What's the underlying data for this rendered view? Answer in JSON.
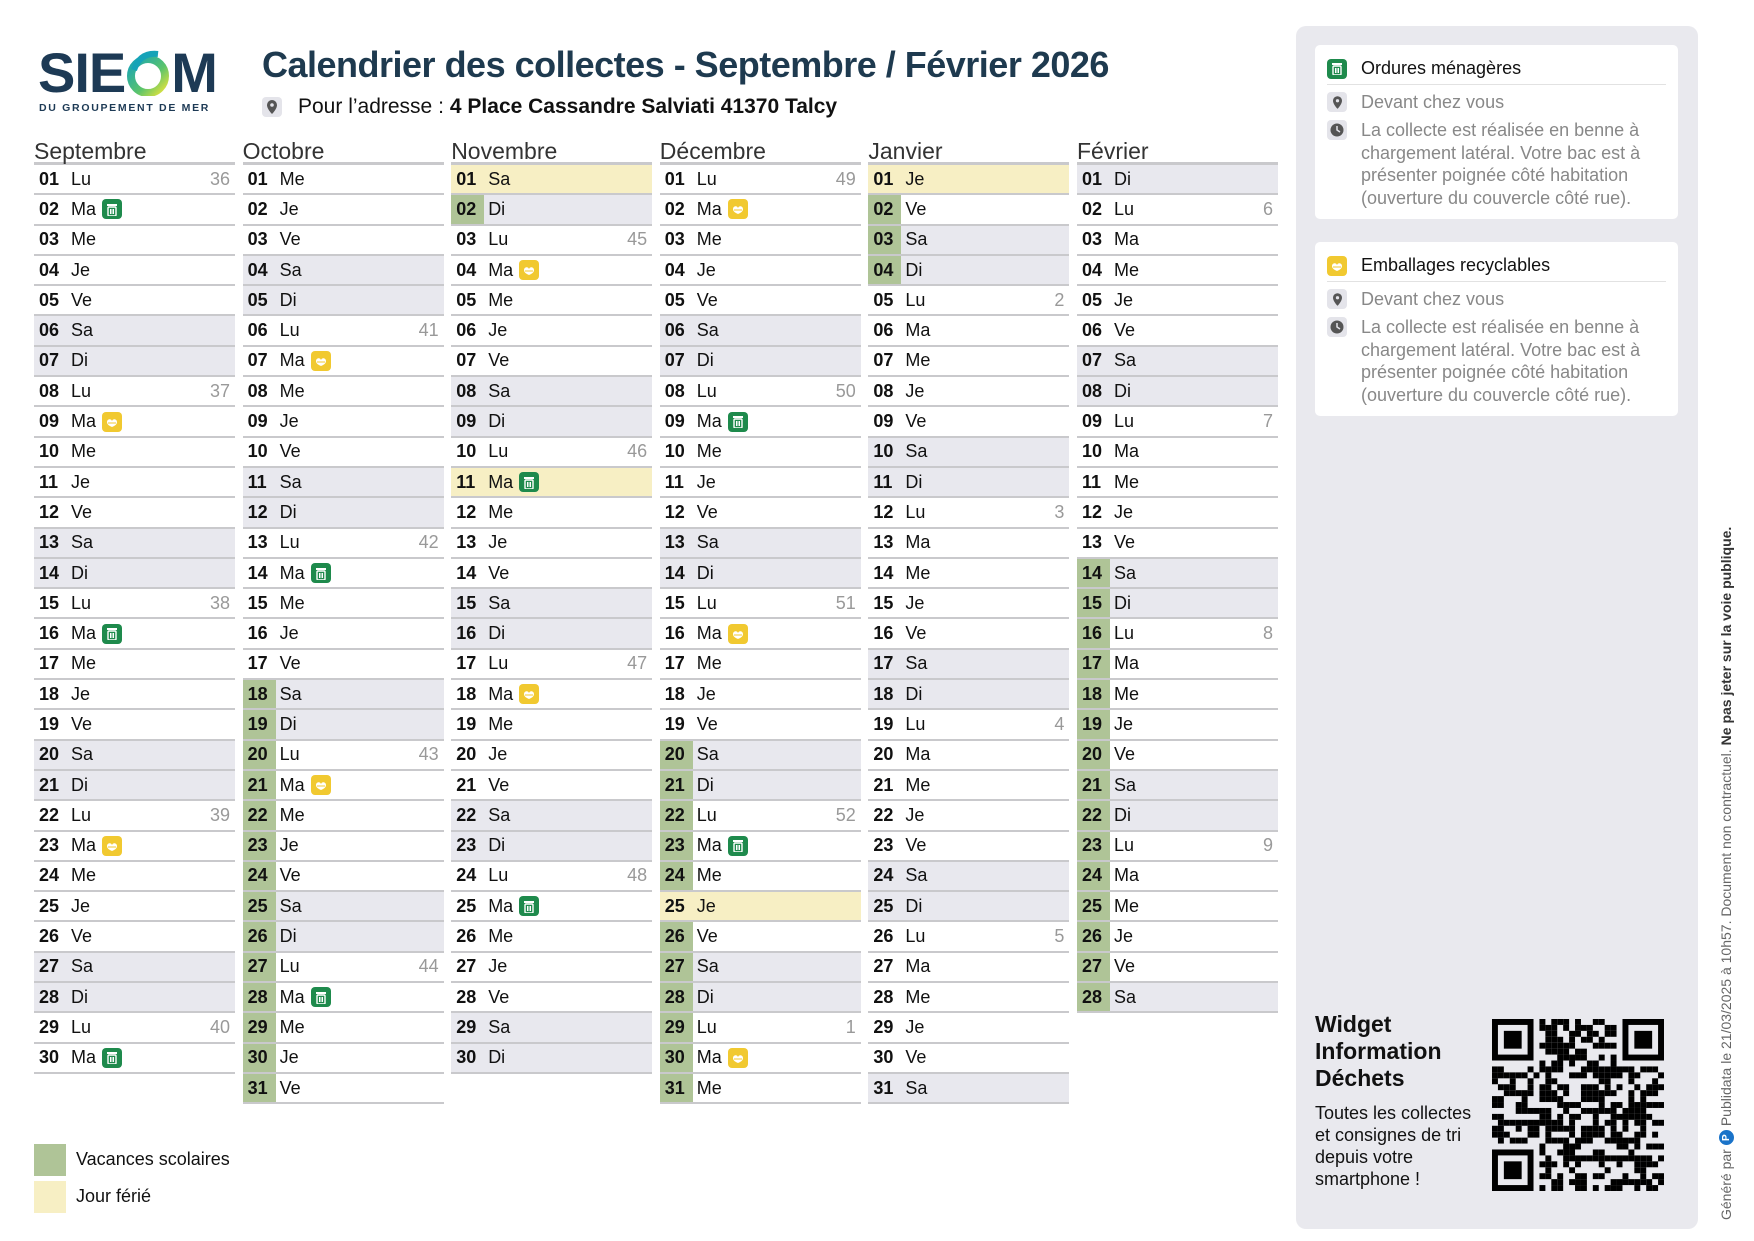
{
  "logo": {
    "text": "SIEOM",
    "subtitle": "DU GROUPEMENT DE MER"
  },
  "header": {
    "title": "Calendrier des collectes - Septembre / Février 2026",
    "address_label": "Pour l’adresse :",
    "address": "4 Place Cassandre Salviati 41370 Talcy"
  },
  "weekdays": [
    "Lu",
    "Ma",
    "Me",
    "Je",
    "Ve",
    "Sa",
    "Di"
  ],
  "colors": {
    "vacation": "#afc497",
    "holiday": "#f7efc4",
    "weekend": "#e8e8ee",
    "trash": "#1e8a4c",
    "recycling": "#f1c930",
    "title": "#1e3a4f"
  },
  "months": [
    {
      "name": "Septembre",
      "days": 30,
      "first_weekday": "Lu",
      "weeks": {
        "1": "36",
        "8": "37",
        "15": "38",
        "22": "39",
        "29": "40"
      },
      "trash": [
        2,
        16,
        30
      ],
      "recycling": [
        9,
        23
      ],
      "holidays": [],
      "vacation": []
    },
    {
      "name": "Octobre",
      "days": 31,
      "first_weekday": "Me",
      "weeks": {
        "6": "41",
        "13": "42",
        "20": "43",
        "27": "44"
      },
      "trash": [
        14,
        28
      ],
      "recycling": [
        7,
        21
      ],
      "holidays": [],
      "vacation": [
        [
          18,
          31
        ]
      ]
    },
    {
      "name": "Novembre",
      "days": 30,
      "first_weekday": "Sa",
      "weeks": {
        "3": "45",
        "10": "46",
        "17": "47",
        "24": "48"
      },
      "trash": [
        11,
        25
      ],
      "recycling": [
        4,
        18
      ],
      "holidays": [
        1,
        11
      ],
      "vacation": [
        [
          1,
          2
        ]
      ]
    },
    {
      "name": "Décembre",
      "days": 31,
      "first_weekday": "Lu",
      "weeks": {
        "1": "49",
        "8": "50",
        "15": "51",
        "22": "52",
        "29": "1"
      },
      "trash": [
        9,
        23
      ],
      "recycling": [
        2,
        16,
        30
      ],
      "holidays": [
        25
      ],
      "vacation": [
        [
          20,
          31
        ]
      ]
    },
    {
      "name": "Janvier",
      "days": 31,
      "first_weekday": "Je",
      "weeks": {
        "5": "2",
        "12": "3",
        "19": "4",
        "26": "5"
      },
      "trash": [],
      "recycling": [],
      "holidays": [
        1
      ],
      "vacation": [
        [
          1,
          4
        ]
      ]
    },
    {
      "name": "Février",
      "days": 28,
      "first_weekday": "Di",
      "weeks": {
        "2": "6",
        "9": "7",
        "16": "8",
        "23": "9"
      },
      "trash": [],
      "recycling": [],
      "holidays": [],
      "vacation": [
        [
          14,
          28
        ]
      ]
    }
  ],
  "legend": {
    "vacation": "Vacances scolaires",
    "holiday": "Jour férié"
  },
  "cards": [
    {
      "title": "Ordures ménagères",
      "icon": "trash-icon",
      "location": "Devant chez vous",
      "info": "La collecte est réalisée en benne à chargement latéral. Votre bac est à présenter poignée côté habitation (ouverture du couvercle côté rue)."
    },
    {
      "title": "Emballages recyclables",
      "icon": "recycling-icon",
      "location": "Devant chez vous",
      "info": "La collecte est réalisée en benne à chargement latéral. Votre bac est à présenter poignée côté habitation (ouverture du couvercle côté rue)."
    }
  ],
  "widget": {
    "title": "Widget Information Déchets",
    "text": "Toutes les collectes et consignes de tri depuis votre smartphone !"
  },
  "footer": {
    "generated_by": "Généré par",
    "brand": "Publidata",
    "date": "le 21/03/2025 à 10h57. Document non contractuel.",
    "warning": "Ne pas jeter sur la voie publique."
  }
}
